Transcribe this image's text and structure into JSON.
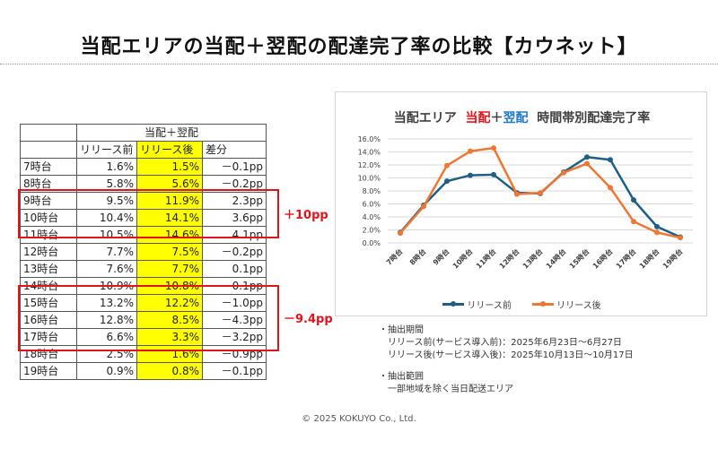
{
  "title": "当配エリアの当配＋翌配の配達完了率の比較【カウネット】",
  "table": {
    "group_header": "当配＋翌配",
    "columns": [
      "",
      "リリース前",
      "リリース後",
      "差分"
    ],
    "rows": [
      {
        "hour": "7時台",
        "before": "1.6%",
        "after": "1.5%",
        "diff": "－0.1pp"
      },
      {
        "hour": "8時台",
        "before": "5.8%",
        "after": "5.6%",
        "diff": "－0.2pp"
      },
      {
        "hour": "9時台",
        "before": "9.5%",
        "after": "11.9%",
        "diff": "2.3pp"
      },
      {
        "hour": "10時台",
        "before": "10.4%",
        "after": "14.1%",
        "diff": "3.6pp"
      },
      {
        "hour": "11時台",
        "before": "10.5%",
        "after": "14.6%",
        "diff": "4.1pp"
      },
      {
        "hour": "12時台",
        "before": "7.7%",
        "after": "7.5%",
        "diff": "－0.2pp"
      },
      {
        "hour": "13時台",
        "before": "7.6%",
        "after": "7.7%",
        "diff": "0.1pp"
      },
      {
        "hour": "14時台",
        "before": "10.9%",
        "after": "10.8%",
        "diff": "－0.1pp"
      },
      {
        "hour": "15時台",
        "before": "13.2%",
        "after": "12.2%",
        "diff": "－1.0pp"
      },
      {
        "hour": "16時台",
        "before": "12.8%",
        "after": "8.5%",
        "diff": "－4.3pp"
      },
      {
        "hour": "17時台",
        "before": "6.6%",
        "after": "3.3%",
        "diff": "－3.2pp"
      },
      {
        "hour": "18時台",
        "before": "2.5%",
        "after": "1.6%",
        "diff": "－0.9pp"
      },
      {
        "hour": "19時台",
        "before": "0.9%",
        "after": "0.8%",
        "diff": "－0.1pp"
      }
    ]
  },
  "annotations": {
    "morning": "＋10pp",
    "afternoon": "－9.4pp"
  },
  "chart_data": {
    "type": "line",
    "title_parts": [
      "当配エリア",
      "当配",
      "＋",
      "翌配",
      "時間帯別配達完了率"
    ],
    "title_colors": {
      "red": "#e0141b",
      "blue": "#1f78c8"
    },
    "categories": [
      "7時台",
      "8時台",
      "9時台",
      "10時台",
      "11時台",
      "12時台",
      "13時台",
      "14時台",
      "15時台",
      "16時台",
      "17時台",
      "18時台",
      "19時台"
    ],
    "series": [
      {
        "name": "リリース前",
        "color": "#1f5f86",
        "values": [
          1.6,
          5.8,
          9.5,
          10.4,
          10.5,
          7.7,
          7.6,
          10.9,
          13.2,
          12.8,
          6.6,
          2.5,
          0.9
        ]
      },
      {
        "name": "リリース後",
        "color": "#ee7734",
        "values": [
          1.5,
          5.6,
          11.9,
          14.1,
          14.6,
          7.5,
          7.7,
          10.8,
          12.2,
          8.5,
          3.3,
          1.6,
          0.8
        ]
      }
    ],
    "ylim": [
      0,
      16
    ],
    "yticks": [
      "0.0%",
      "2.0%",
      "4.0%",
      "6.0%",
      "8.0%",
      "10.0%",
      "12.0%",
      "14.0%",
      "16.0%"
    ],
    "ytick_values": [
      0,
      2,
      4,
      6,
      8,
      10,
      12,
      14,
      16
    ],
    "grid": true,
    "legend": "bottom"
  },
  "notes": {
    "period_heading": "・抽出期間",
    "period_before": "リリース前(サービス導入前)：2025年6月23日～6月27日",
    "period_after": "リリース後(サービス導入後)：2025年10月13日～10月17日",
    "scope_heading": "・抽出範囲",
    "scope_text": "一部地域を除く当日配送エリア"
  },
  "footer": "© 2025 KOKUYO Co., Ltd."
}
